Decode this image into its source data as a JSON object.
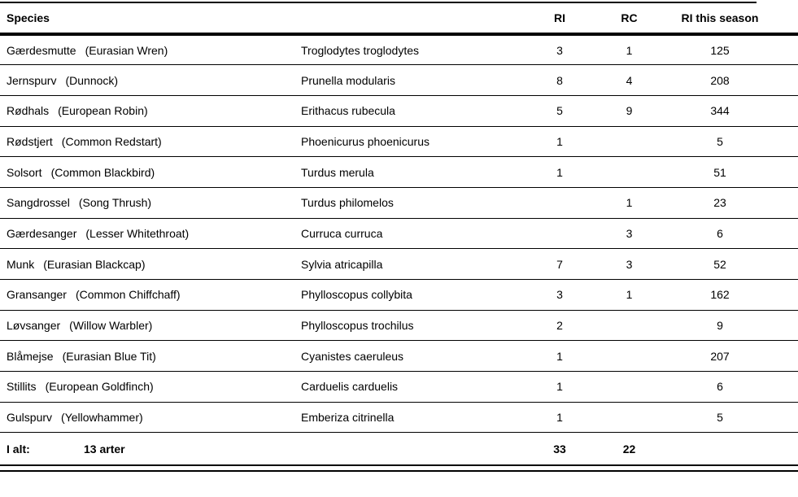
{
  "table": {
    "headers": {
      "species": "Species",
      "ri": "RI",
      "rc": "RC",
      "season": "RI this season"
    },
    "rows": [
      {
        "danish": "Gærdesmutte",
        "english": "(Eurasian Wren)",
        "latin": "Troglodytes troglodytes",
        "ri": "3",
        "rc": "1",
        "season": "125"
      },
      {
        "danish": "Jernspurv",
        "english": "(Dunnock)",
        "latin": "Prunella modularis",
        "ri": "8",
        "rc": "4",
        "season": "208"
      },
      {
        "danish": "Rødhals",
        "english": "(European Robin)",
        "latin": "Erithacus rubecula",
        "ri": "5",
        "rc": "9",
        "season": "344"
      },
      {
        "danish": "Rødstjert",
        "english": "(Common Redstart)",
        "latin": "Phoenicurus phoenicurus",
        "ri": "1",
        "rc": "",
        "season": "5"
      },
      {
        "danish": "Solsort",
        "english": "(Common Blackbird)",
        "latin": "Turdus merula",
        "ri": "1",
        "rc": "",
        "season": "51"
      },
      {
        "danish": "Sangdrossel",
        "english": "(Song Thrush)",
        "latin": "Turdus philomelos",
        "ri": "",
        "rc": "1",
        "season": "23"
      },
      {
        "danish": "Gærdesanger",
        "english": "(Lesser Whitethroat)",
        "latin": "Curruca curruca",
        "ri": "",
        "rc": "3",
        "season": "6"
      },
      {
        "danish": "Munk",
        "english": "(Eurasian Blackcap)",
        "latin": "Sylvia atricapilla",
        "ri": "7",
        "rc": "3",
        "season": "52"
      },
      {
        "danish": "Gransanger",
        "english": "(Common Chiffchaff)",
        "latin": "Phylloscopus collybita",
        "ri": "3",
        "rc": "1",
        "season": "162"
      },
      {
        "danish": "Løvsanger",
        "english": "(Willow Warbler)",
        "latin": "Phylloscopus trochilus",
        "ri": "2",
        "rc": "",
        "season": "9"
      },
      {
        "danish": "Blåmejse",
        "english": "(Eurasian Blue Tit)",
        "latin": "Cyanistes caeruleus",
        "ri": "1",
        "rc": "",
        "season": "207"
      },
      {
        "danish": "Stillits",
        "english": "(European Goldfinch)",
        "latin": "Carduelis carduelis",
        "ri": "1",
        "rc": "",
        "season": "6"
      },
      {
        "danish": "Gulspurv",
        "english": "(Yellowhammer)",
        "latin": "Emberiza citrinella",
        "ri": "1",
        "rc": "",
        "season": "5"
      }
    ],
    "totals": {
      "label": "I alt:",
      "species_count": "13 arter",
      "ri": "33",
      "rc": "22",
      "season": ""
    }
  },
  "colors": {
    "text": "#000000",
    "rule": "#000000",
    "background": "#ffffff"
  }
}
